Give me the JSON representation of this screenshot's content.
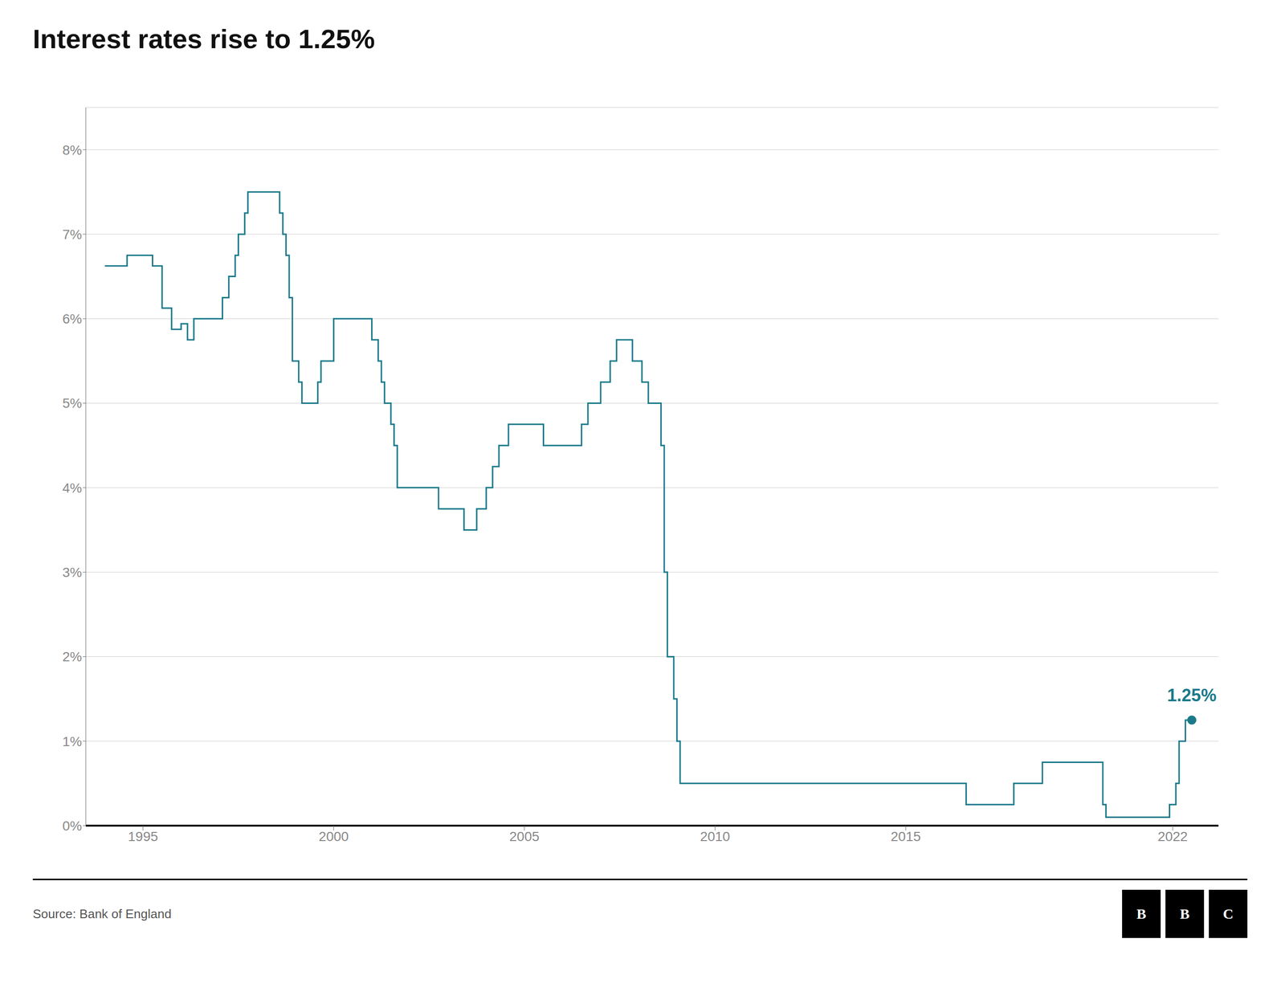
{
  "chart_data": {
    "type": "step",
    "title": "Interest rates rise to 1.25%",
    "x": [
      1994.0,
      1994.25,
      1994.583,
      1994.75,
      1995.0,
      1995.25,
      1995.5,
      1995.75,
      1996.0,
      1996.167,
      1996.333,
      1996.583,
      1996.917,
      1997.083,
      1997.25,
      1997.417,
      1997.5,
      1997.583,
      1997.667,
      1997.75,
      1998.0,
      1998.083,
      1998.25,
      1998.417,
      1998.583,
      1998.667,
      1998.75,
      1998.833,
      1998.917,
      1999.0,
      1999.083,
      1999.167,
      1999.25,
      1999.5,
      1999.583,
      1999.667,
      1999.833,
      2000.0,
      2000.167,
      2000.25,
      2000.5,
      2000.75,
      2001.0,
      2001.167,
      2001.25,
      2001.333,
      2001.5,
      2001.583,
      2001.667,
      2001.75,
      2002.0,
      2002.25,
      2002.75,
      2003.0,
      2003.25,
      2003.417,
      2003.583,
      2003.75,
      2004.0,
      2004.167,
      2004.333,
      2004.417,
      2004.583,
      2004.75,
      2005.0,
      2005.25,
      2005.5,
      2005.75,
      2006.0,
      2006.25,
      2006.5,
      2006.667,
      2006.75,
      2007.0,
      2007.083,
      2007.25,
      2007.417,
      2007.583,
      2007.75,
      2007.833,
      2007.917,
      2008.0,
      2008.083,
      2008.25,
      2008.417,
      2008.583,
      2008.667,
      2008.75,
      2008.833,
      2008.917,
      2009.0,
      2009.083,
      2009.25,
      2009.5,
      2009.75,
      2010.0,
      2012.0,
      2014.0,
      2016.5,
      2016.583,
      2016.75,
      2017.0,
      2017.75,
      2017.833,
      2018.0,
      2018.417,
      2018.583,
      2018.75,
      2019.0,
      2020.083,
      2020.167,
      2020.25,
      2020.5,
      2021.0,
      2021.833,
      2021.917,
      2022.0,
      2022.083,
      2022.167,
      2022.333,
      2022.5
    ],
    "values": [
      6.625,
      6.625,
      6.75,
      6.75,
      6.75,
      6.625,
      6.125,
      5.875,
      5.94,
      5.75,
      6.0,
      6.0,
      6.0,
      6.25,
      6.5,
      6.75,
      7.0,
      7.0,
      7.25,
      7.5,
      7.5,
      7.5,
      7.5,
      7.5,
      7.25,
      7.0,
      6.75,
      6.25,
      5.5,
      5.5,
      5.25,
      5.0,
      5.0,
      5.0,
      5.25,
      5.5,
      5.5,
      6.0,
      6.0,
      6.0,
      6.0,
      6.0,
      5.75,
      5.5,
      5.25,
      5.0,
      4.75,
      4.5,
      4.0,
      4.0,
      4.0,
      4.0,
      3.75,
      3.75,
      3.75,
      3.5,
      3.5,
      3.75,
      4.0,
      4.25,
      4.5,
      4.5,
      4.75,
      4.75,
      4.75,
      4.75,
      4.5,
      4.5,
      4.5,
      4.5,
      4.75,
      5.0,
      5.0,
      5.25,
      5.25,
      5.5,
      5.75,
      5.75,
      5.75,
      5.5,
      5.5,
      5.5,
      5.25,
      5.0,
      5.0,
      4.5,
      3.0,
      2.0,
      2.0,
      1.5,
      1.0,
      0.5,
      0.5,
      0.5,
      0.5,
      0.5,
      0.5,
      0.5,
      0.5,
      0.25,
      0.25,
      0.25,
      0.25,
      0.5,
      0.5,
      0.5,
      0.75,
      0.75,
      0.75,
      0.75,
      0.25,
      0.1,
      0.1,
      0.1,
      0.1,
      0.25,
      0.25,
      0.5,
      1.0,
      1.25,
      1.25
    ],
    "color": "#1a7a8a",
    "xlim": [
      1993.5,
      2023.2
    ],
    "xticks": [
      1995,
      2000,
      2005,
      2010,
      2015,
      2022
    ],
    "ylim": [
      0,
      8.5
    ],
    "yticks": [
      {
        "value": 0,
        "label": "0%"
      },
      {
        "value": 1,
        "label": "1%"
      },
      {
        "value": 2,
        "label": "2%"
      },
      {
        "value": 3,
        "label": "3%"
      },
      {
        "value": 4,
        "label": "4%"
      },
      {
        "value": 5,
        "label": "5%"
      },
      {
        "value": 6,
        "label": "6%"
      },
      {
        "value": 7,
        "label": "7%"
      },
      {
        "value": 8,
        "label": "8%"
      }
    ],
    "grid": "y",
    "annotations": [
      {
        "text": "1.25%",
        "color": "#1a7a8a"
      }
    ],
    "source": "Source: Bank of England",
    "logo": "BBC"
  }
}
